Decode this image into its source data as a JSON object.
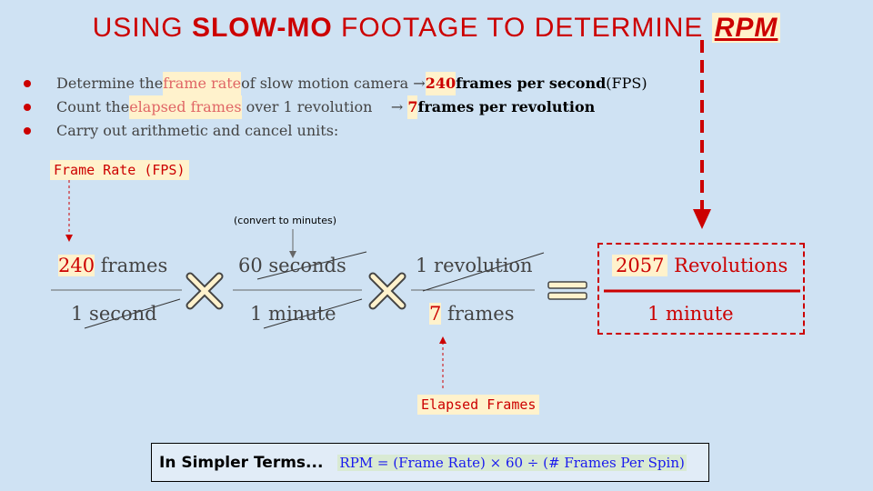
{
  "title": {
    "prefix": "USING ",
    "bold": "SLOW-MO",
    "middle": " FOOTAGE TO DETERMINE ",
    "rpm": "RPM"
  },
  "bullets": [
    {
      "pre": "Determine the ",
      "hl": "frame rate",
      "mid": " of slow motion camera → ",
      "num": "240",
      "strong": " frames per second",
      "post": " (FPS)"
    },
    {
      "pre": "Count the ",
      "hl": "elapsed frames",
      "mid": " over 1 revolution    → ",
      "num": "7",
      "strong": " frames per revolution",
      "post": ""
    },
    {
      "pre": "Carry out arithmetic and cancel units:",
      "hl": "",
      "mid": "",
      "num": "",
      "strong": "",
      "post": ""
    }
  ],
  "labels": {
    "frame_rate": "Frame Rate (FPS)",
    "convert": "(convert to minutes)",
    "elapsed": "Elapsed Frames"
  },
  "fraction1": {
    "num_value": "240",
    "num_unit": " frames",
    "den": "1 second"
  },
  "fraction2": {
    "num": "60 seconds",
    "den": "1 minute"
  },
  "fraction3": {
    "num": "1 revolution",
    "den_value": "7",
    "den_unit": " frames"
  },
  "result": {
    "value": "2057",
    "unit": " Revolutions",
    "den": "1 minute"
  },
  "bottom": {
    "label": "In Simpler Terms...",
    "formula": "RPM = (Frame Rate) × 60 ÷ (# Frames Per Spin)"
  },
  "colors": {
    "accent": "#cc0000",
    "highlight": "#fff2cc",
    "background": "#cfe2f3"
  }
}
